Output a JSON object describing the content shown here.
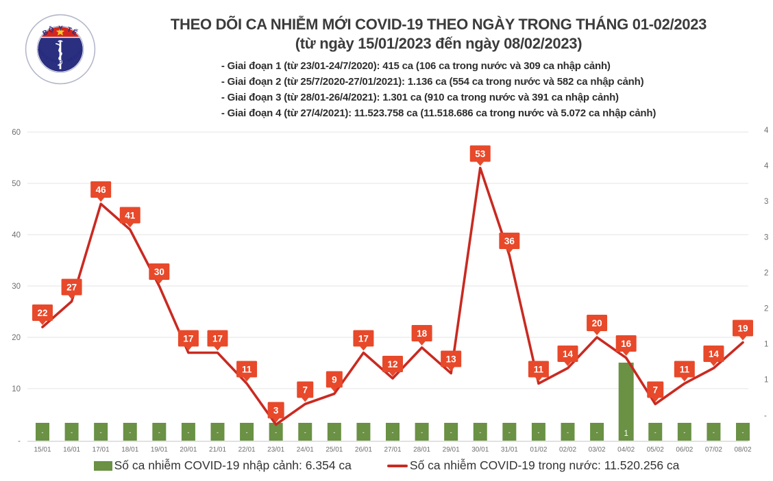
{
  "header": {
    "logo": {
      "top_text": "BỘ Y TẾ",
      "bottom_text": "MINISTRY OF HEALTH"
    },
    "title_line1": "THEO DÕI CA NHIỄM MỚI COVID-19 THEO NGÀY TRONG THÁNG 01-02/2023",
    "title_line2": "(từ ngày 15/01/2023 đến ngày 08/02/2023)",
    "notes": [
      "- Giai đoạn 1 (từ 23/01-24/7/2020): 415 ca (106 ca trong nước và 309 ca nhập cảnh)",
      "- Giai đoạn 2 (từ 25/7/2020-27/01/2021): 1.136 ca (554 ca trong nước và 582 ca nhập cảnh)",
      "- Giai đoạn 3 (từ 28/01-26/4/2021): 1.301 ca (910 ca trong nước và 391 ca nhập cảnh)",
      "- Giai đoạn 4 (từ 27/4/2021): 11.523.758 ca (11.518.686 ca trong nước và 5.072 ca nhập cảnh)"
    ]
  },
  "chart_data": {
    "type": "line+bar",
    "categories": [
      "15/01",
      "16/01",
      "17/01",
      "18/01",
      "19/01",
      "20/01",
      "21/01",
      "22/01",
      "23/01",
      "24/01",
      "25/01",
      "26/01",
      "27/01",
      "28/01",
      "29/01",
      "30/01",
      "31/01",
      "01/02",
      "02/02",
      "03/02",
      "04/02",
      "05/02",
      "06/02",
      "07/02",
      "08/02"
    ],
    "series": [
      {
        "name": "Số ca nhiễm COVID-19 trong nước",
        "type": "line",
        "values": [
          22,
          27,
          46,
          41,
          30,
          17,
          17,
          11,
          3,
          7,
          9,
          17,
          12,
          18,
          13,
          53,
          36,
          11,
          14,
          20,
          16,
          7,
          11,
          14,
          19
        ]
      },
      {
        "name": "Số ca nhiễm COVID-19 nhập cảnh",
        "type": "bar",
        "values": [
          0,
          0,
          0,
          0,
          0,
          0,
          0,
          0,
          0,
          0,
          0,
          0,
          0,
          0,
          0,
          0,
          0,
          0,
          0,
          0,
          1,
          0,
          0,
          0,
          0
        ],
        "zero_label": "-"
      }
    ],
    "left_axis": {
      "ticks": [
        60,
        50,
        40,
        30,
        20,
        10
      ],
      "zero_label": "-",
      "ylim": [
        0,
        60
      ]
    },
    "right_axis": {
      "visible_labels": [
        "4",
        "4",
        "3",
        "3",
        "2",
        "2",
        "1",
        "1",
        "-"
      ]
    },
    "grid": true,
    "colors": {
      "line": "#c92a21",
      "label_box": "#e7492a",
      "label_text": "#ffffff",
      "bar": "#6a9144",
      "grid": "#e3e3e3",
      "axis_line": "#cfcfcf",
      "tick_text": "#6e6e6e"
    }
  },
  "legend": [
    {
      "swatch": "bar",
      "label": "Số ca nhiễm COVID-19 nhập cảnh: 6.354 ca"
    },
    {
      "swatch": "line",
      "label": "Số ca nhiễm COVID-19 trong nước: 11.520.256 ca"
    }
  ]
}
